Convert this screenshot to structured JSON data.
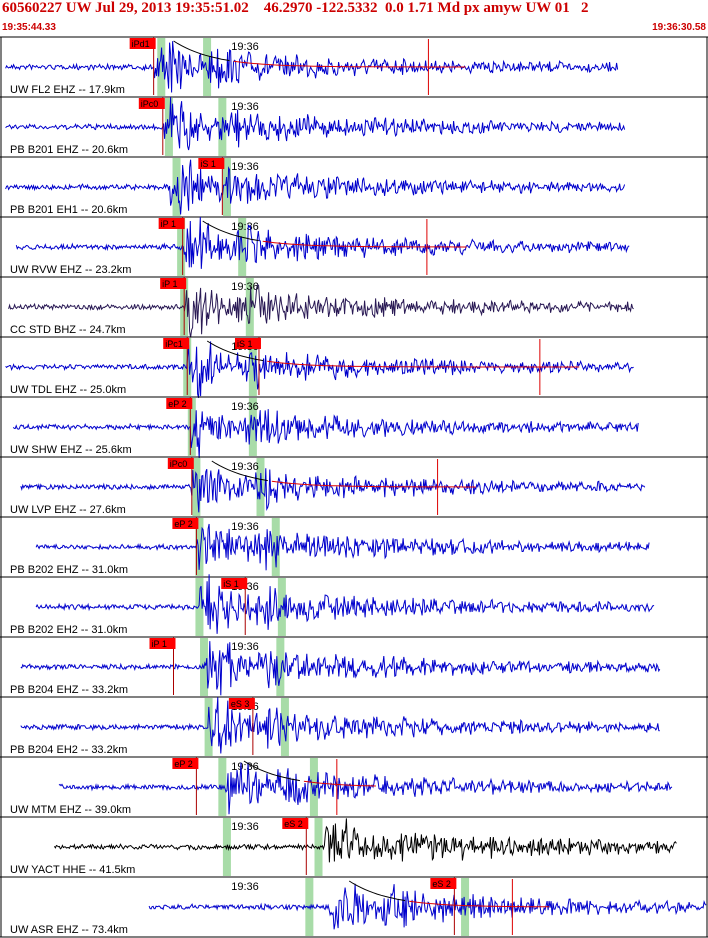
{
  "header": {
    "title": "60560227 UW Jul 29, 2013 19:35:51.02    46.2970 -122.5332  0.0 1.71 Md px amyw UW 01   2",
    "start_time": "19:35:44.33",
    "end_time": "19:36:30.58"
  },
  "colors": {
    "header_text": "#cc0000",
    "pick_box": "#ff0000",
    "trace_default": "#0000cc",
    "trace_dark": "#2a1a55",
    "trace_black": "#000000",
    "window_band": "#a8dca8",
    "coda_line": "#000000",
    "coda_fit": "#dd0000"
  },
  "minute_label": "19:36",
  "traces": [
    {
      "station": "UW FL2 EHZ -- 17.9km",
      "color": "trace",
      "picks": [
        {
          "label": "iPd1",
          "t": 10.0
        }
      ],
      "bands": [
        10.5,
        13.5
      ],
      "minute_t": 16.0,
      "coda_t": 28.0,
      "trace_start": 0.3,
      "trace_end": 40.4,
      "onset_t": 10.0
    },
    {
      "station": "PB B201 EHZ -- 20.6km",
      "color": "trace",
      "picks": [
        {
          "label": "iPc0",
          "t": 10.6
        }
      ],
      "bands": [
        11.0,
        14.5
      ],
      "minute_t": 16.0,
      "coda_t": null,
      "trace_start": 0.3,
      "trace_end": 40.9,
      "onset_t": 10.6
    },
    {
      "station": "PB B201 EH1 -- 20.6km",
      "color": "trace",
      "picks": [
        {
          "label": "iS 1",
          "t": 14.5
        }
      ],
      "bands": [
        11.5,
        14.8
      ],
      "minute_t": 16.0,
      "coda_t": null,
      "trace_start": 0.3,
      "trace_end": 40.9,
      "onset_t": 11.0
    },
    {
      "station": "UW RVW EHZ -- 23.2km",
      "color": "trace",
      "picks": [
        {
          "label": "iP 1",
          "t": 11.9
        }
      ],
      "bands": [
        11.8,
        15.8
      ],
      "minute_t": 16.0,
      "coda_t": 27.9,
      "trace_start": 1.0,
      "trace_end": 41.2,
      "onset_t": 11.9
    },
    {
      "station": "CC STD BHZ -- 24.7km",
      "color": "dark",
      "picks": [
        {
          "label": "iP 1",
          "t": 12.0
        }
      ],
      "bands": [
        12.0,
        16.3
      ],
      "minute_t": 16.0,
      "coda_t": null,
      "trace_start": 0.5,
      "trace_end": 41.5,
      "onset_t": 12.0
    },
    {
      "station": "UW TDL EHZ -- 25.0km",
      "color": "trace",
      "picks": [
        {
          "label": "iPc1",
          "t": 12.2
        },
        {
          "label": "iS 1",
          "t": 16.9
        }
      ],
      "bands": [
        12.2,
        16.5
      ],
      "minute_t": 16.0,
      "coda_t": 35.3,
      "trace_start": 0.3,
      "trace_end": 41.5,
      "onset_t": 12.2
    },
    {
      "station": "UW SHW EHZ -- 25.6km",
      "color": "trace",
      "picks": [
        {
          "label": "eP 2",
          "t": 12.4
        }
      ],
      "bands": [
        12.5,
        16.5
      ],
      "minute_t": 16.0,
      "coda_t": null,
      "trace_start": 0.8,
      "trace_end": 41.8,
      "onset_t": 12.4
    },
    {
      "station": "UW LVP EHZ -- 27.6km",
      "color": "trace",
      "picks": [
        {
          "label": "iPc0",
          "t": 12.5
        }
      ],
      "bands": [
        12.8,
        17.0
      ],
      "minute_t": 16.0,
      "coda_t": 28.6,
      "trace_start": 1.3,
      "trace_end": 42.2,
      "onset_t": 12.5
    },
    {
      "station": "PB B202 EHZ -- 31.0km",
      "color": "trace",
      "picks": [
        {
          "label": "eP 2",
          "t": 12.8
        }
      ],
      "bands": [
        13.0,
        18.0
      ],
      "minute_t": 16.0,
      "coda_t": null,
      "trace_start": 2.3,
      "trace_end": 42.5,
      "onset_t": 12.8
    },
    {
      "station": "PB B202 EH2 -- 31.0km",
      "color": "trace",
      "picks": [
        {
          "label": "iS 1",
          "t": 16.0
        }
      ],
      "bands": [
        13.0,
        18.4
      ],
      "minute_t": 16.0,
      "coda_t": null,
      "trace_start": 2.3,
      "trace_end": 42.8,
      "onset_t": 13.0
    },
    {
      "station": "PB B204 EHZ -- 33.2km",
      "color": "trace",
      "picks": [
        {
          "label": "iP 1",
          "t": 11.3
        }
      ],
      "bands": [
        13.3,
        18.3
      ],
      "minute_t": 16.0,
      "coda_t": null,
      "trace_start": 1.3,
      "trace_end": 43.2,
      "onset_t": 13.3
    },
    {
      "station": "PB B204 EH2 -- 33.2km",
      "color": "trace",
      "picks": [
        {
          "label": "eS 3",
          "t": 16.5
        }
      ],
      "bands": [
        13.6,
        18.6
      ],
      "minute_t": 16.0,
      "coda_t": null,
      "trace_start": 1.3,
      "trace_end": 43.2,
      "onset_t": 13.6
    },
    {
      "station": "UW MTM EHZ -- 39.0km",
      "color": "trace",
      "picks": [
        {
          "label": "eP 2",
          "t": 12.8
        }
      ],
      "bands": [
        14.5,
        20.5
      ],
      "minute_t": 16.0,
      "coda_t": 22.0,
      "trace_start": 3.8,
      "trace_end": 44.0,
      "onset_t": 14.6
    },
    {
      "station": "UW YACT HHE -- 41.5km",
      "color": "black",
      "picks": [
        {
          "label": "eS 2",
          "t": 20.0
        }
      ],
      "bands": [
        14.8,
        20.8
      ],
      "minute_t": 16.0,
      "coda_t": null,
      "trace_start": 3.5,
      "trace_end": 44.3,
      "onset_t": 21.2
    },
    {
      "station": "UW ASR EHZ -- 73.4km",
      "color": "trace",
      "picks": [
        {
          "label": "eS 2",
          "t": 29.7
        }
      ],
      "bands": [
        20.2,
        30.4
      ],
      "minute_t": 16.0,
      "coda_t": 33.5,
      "trace_start": 9.7,
      "trace_end": 46.2,
      "onset_t": 21.5
    }
  ]
}
